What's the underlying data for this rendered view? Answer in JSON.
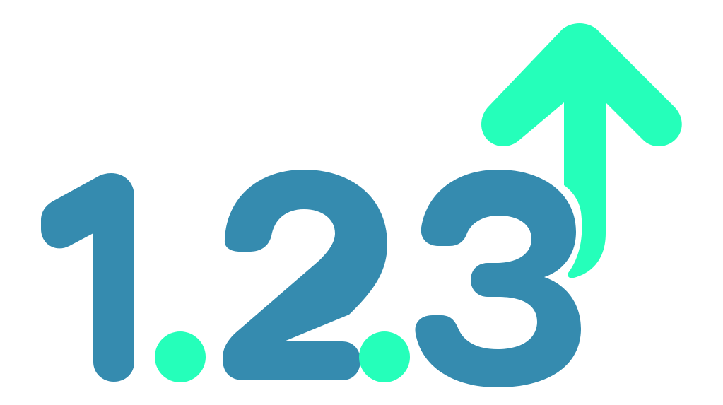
{
  "logo": {
    "version_text": "1.2.3",
    "digits": [
      "1",
      "2",
      "3"
    ],
    "separators": [
      ".",
      "."
    ],
    "icon": "up-arrow-icon",
    "colors": {
      "digits": "#358BAF",
      "accent": "#25FFBA",
      "background": "#FFFFFF"
    }
  }
}
